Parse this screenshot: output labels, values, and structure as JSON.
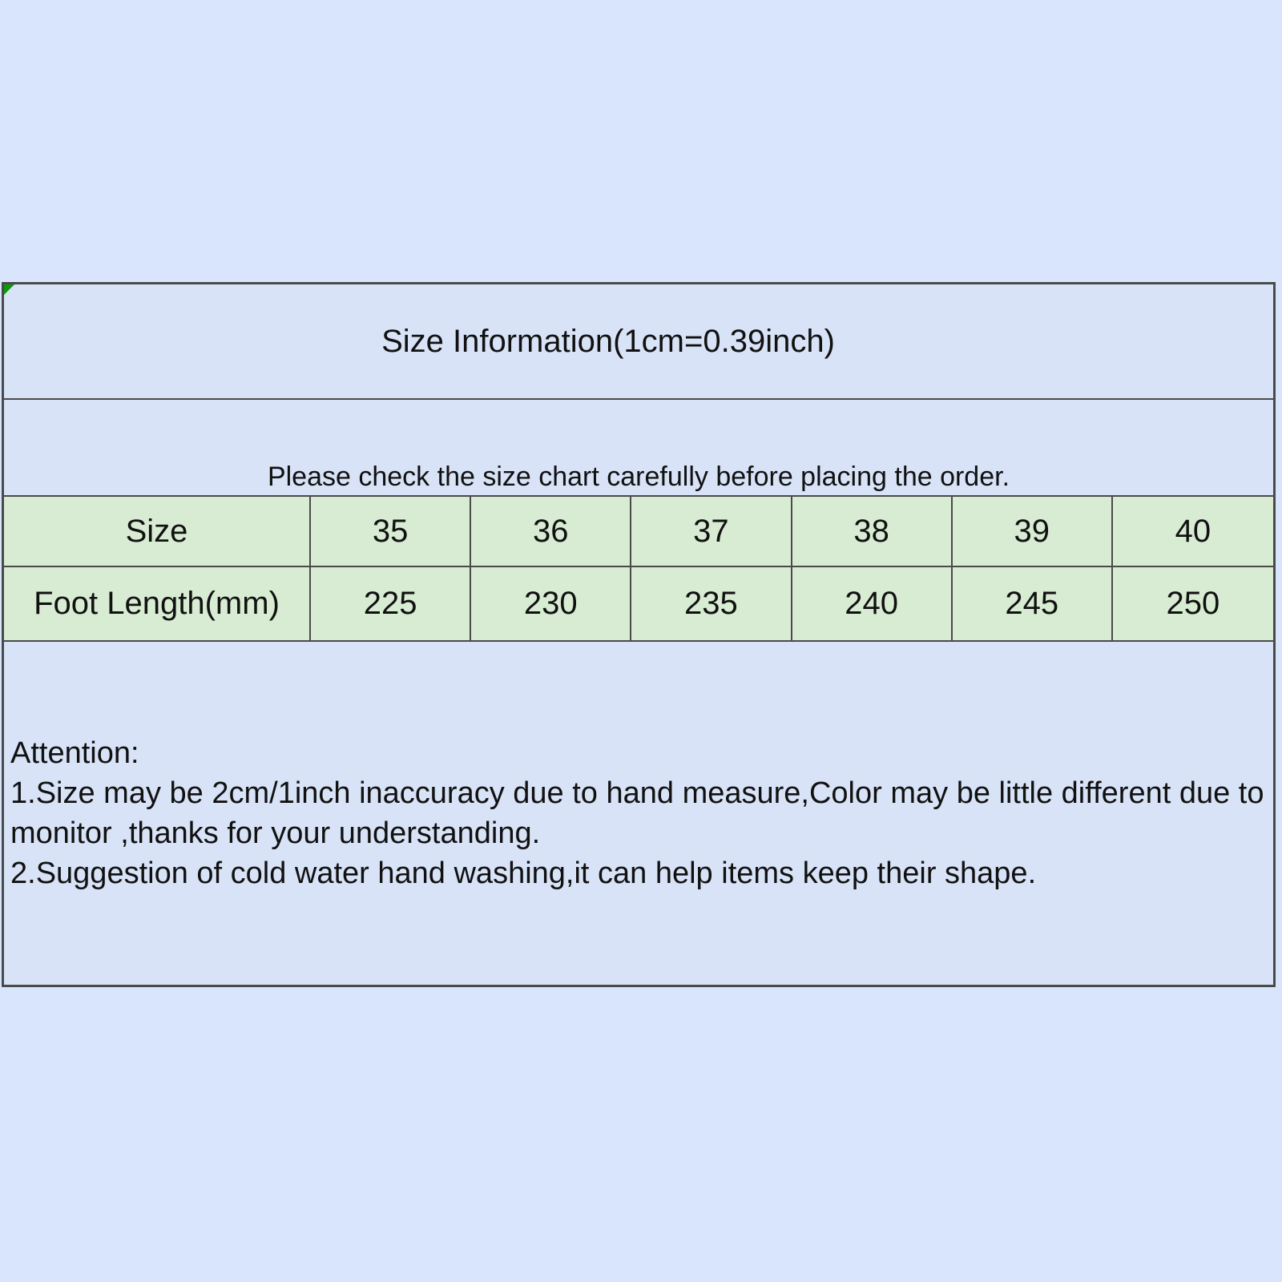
{
  "page": {
    "background_color": "#d9e5fc"
  },
  "size_sheet": {
    "title": "Size Information(1cm=0.39inch)",
    "subtitle": "Please check the size chart carefully before placing the order.",
    "colors": {
      "cell_blue": "#d8e3f7",
      "cell_green": "#d8ecd3",
      "border": "#4a4a4a",
      "corner_marker_green": "#0b9a0b",
      "text": "#111111"
    },
    "table": {
      "rows": [
        {
          "label": "Size",
          "values": [
            "35",
            "36",
            "37",
            "38",
            "39",
            "40"
          ]
        },
        {
          "label": "Foot Length(mm)",
          "values": [
            "225",
            "230",
            "235",
            "240",
            "245",
            "250"
          ]
        }
      ]
    },
    "attention": {
      "heading": "Attention:",
      "notes": [
        "1.Size may be 2cm/1inch inaccuracy due to hand measure,Color may be little different due to monitor ,thanks for your understanding.",
        "2.Suggestion of cold water hand washing,it can help items keep their shape."
      ]
    }
  }
}
